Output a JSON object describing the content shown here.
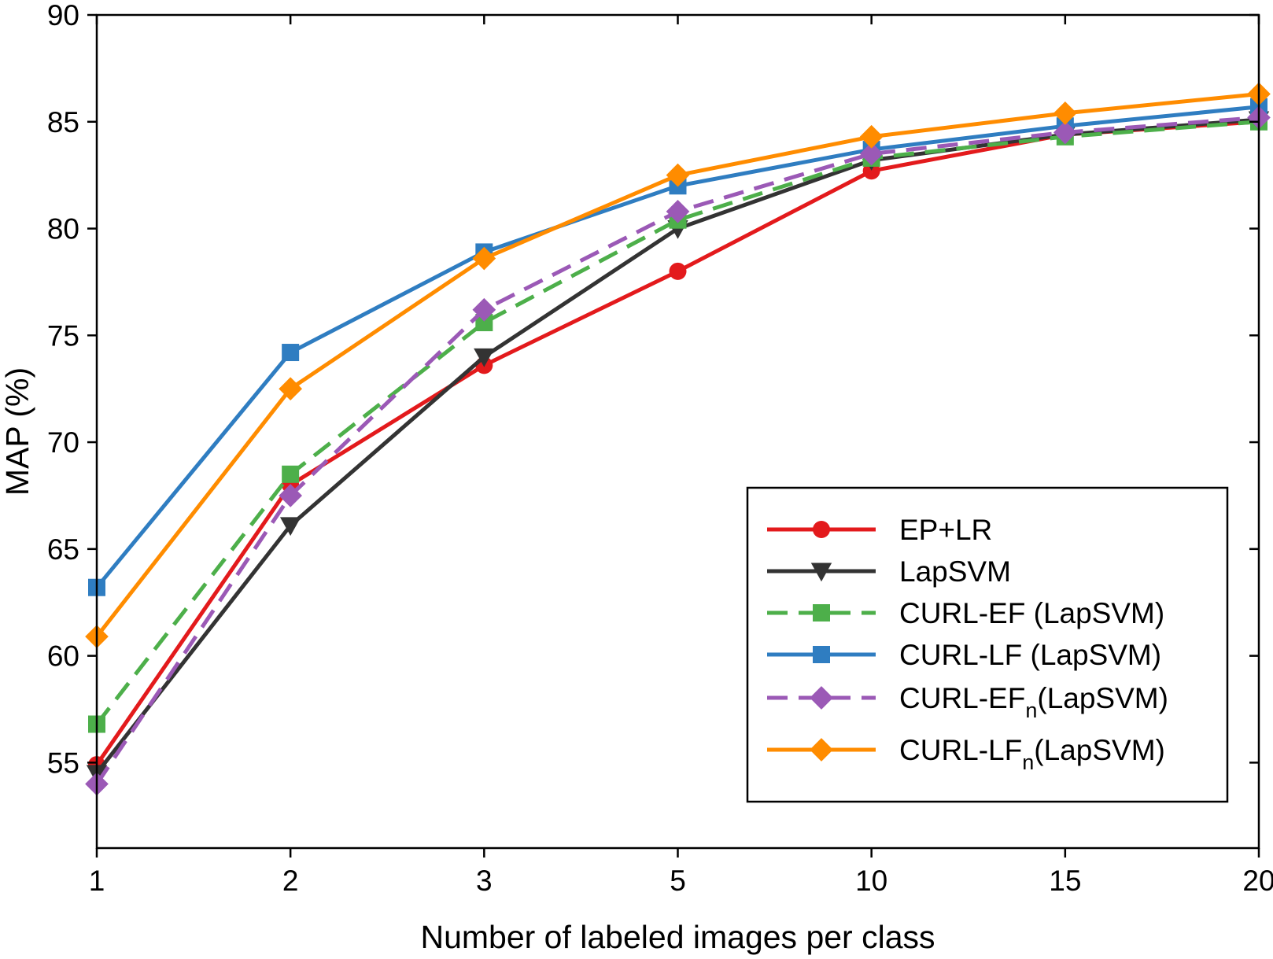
{
  "chart_data": {
    "type": "line",
    "xlabel": "Number of labeled images per class",
    "ylabel": "MAP (%)",
    "categories": [
      "1",
      "2",
      "3",
      "5",
      "10",
      "15",
      "20"
    ],
    "ylim": [
      51,
      90
    ],
    "yticks": [
      55,
      60,
      65,
      70,
      75,
      80,
      85,
      90
    ],
    "grid": false,
    "legend_position": "bottom-right",
    "series": [
      {
        "name": "EP+LR",
        "label_main": "EP+LR",
        "label_sub": "",
        "label_tail": "",
        "color": "#e31a1c",
        "marker": "circle",
        "dashed": false,
        "values": [
          54.9,
          68.0,
          73.6,
          78.0,
          82.7,
          84.4,
          85.0
        ]
      },
      {
        "name": "LapSVM",
        "label_main": "LapSVM",
        "label_sub": "",
        "label_tail": "",
        "color": "#333333",
        "marker": "triangle-down",
        "dashed": false,
        "values": [
          54.5,
          66.1,
          74.0,
          80.0,
          83.2,
          84.4,
          85.1
        ]
      },
      {
        "name": "CURL-EF (LapSVM)",
        "label_main": "CURL-EF (LapSVM)",
        "label_sub": "",
        "label_tail": "",
        "color": "#4daf4a",
        "marker": "square",
        "dashed": true,
        "values": [
          56.8,
          68.5,
          75.6,
          80.4,
          83.3,
          84.3,
          85.0
        ]
      },
      {
        "name": "CURL-LF (LapSVM)",
        "label_main": "CURL-LF (LapSVM)",
        "label_sub": "",
        "label_tail": "",
        "color": "#2f7dc1",
        "marker": "square",
        "dashed": false,
        "values": [
          63.2,
          74.2,
          78.9,
          82.0,
          83.7,
          84.8,
          85.7
        ]
      },
      {
        "name": "CURL-EFn(LapSVM)",
        "label_main": "CURL-EF",
        "label_sub": "n",
        "label_tail": "(LapSVM)",
        "color": "#9b59b6",
        "marker": "diamond",
        "dashed": true,
        "values": [
          54.0,
          67.5,
          76.2,
          80.8,
          83.5,
          84.5,
          85.2
        ]
      },
      {
        "name": "CURL-LFn(LapSVM)",
        "label_main": "CURL-LF",
        "label_sub": "n",
        "label_tail": "(LapSVM)",
        "color": "#ff8c00",
        "marker": "diamond",
        "dashed": false,
        "values": [
          60.9,
          72.5,
          78.6,
          82.5,
          84.3,
          85.4,
          86.3
        ]
      }
    ]
  }
}
